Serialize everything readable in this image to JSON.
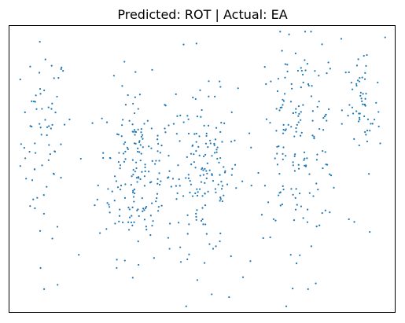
{
  "chart_data": {
    "type": "scatter",
    "title": "Predicted: ROT | Actual: EA",
    "xlabel": "",
    "ylabel": "",
    "axes_ticks": false,
    "grid": false,
    "legend": "none",
    "marker_color": "#1f77b4",
    "xlim": [
      0,
      1000
    ],
    "ylim": [
      0,
      1000
    ],
    "series": [
      {
        "name": "",
        "clusters": [
          {
            "x_center": 90,
            "x_spread": 30,
            "y_center": 600,
            "y_spread": 170,
            "count": 70
          },
          {
            "x_center": 330,
            "x_spread": 50,
            "y_center": 500,
            "y_spread": 150,
            "count": 190
          },
          {
            "x_center": 505,
            "x_spread": 45,
            "y_center": 480,
            "y_spread": 140,
            "count": 150
          },
          {
            "x_center": 750,
            "x_spread": 55,
            "y_center": 610,
            "y_spread": 170,
            "count": 170
          },
          {
            "x_center": 915,
            "x_spread": 25,
            "y_center": 700,
            "y_spread": 120,
            "count": 55
          }
        ],
        "outliers": [
          {
            "x": 452,
            "y": 935
          },
          {
            "x": 975,
            "y": 960
          },
          {
            "x": 90,
            "y": 80
          },
          {
            "x": 125,
            "y": 95
          },
          {
            "x": 320,
            "y": 120
          },
          {
            "x": 335,
            "y": 165
          },
          {
            "x": 445,
            "y": 175
          },
          {
            "x": 525,
            "y": 62
          },
          {
            "x": 570,
            "y": 52
          },
          {
            "x": 575,
            "y": 195
          },
          {
            "x": 730,
            "y": 200
          },
          {
            "x": 745,
            "y": 170
          },
          {
            "x": 735,
            "y": 82
          },
          {
            "x": 775,
            "y": 80
          },
          {
            "x": 795,
            "y": 100
          },
          {
            "x": 180,
            "y": 200
          },
          {
            "x": 935,
            "y": 280
          },
          {
            "x": 895,
            "y": 315
          },
          {
            "x": 820,
            "y": 355
          },
          {
            "x": 655,
            "y": 340
          }
        ]
      }
    ]
  }
}
